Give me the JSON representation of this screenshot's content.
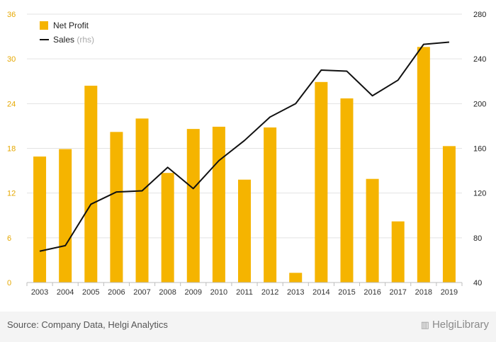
{
  "chart_data": {
    "type": "bar",
    "categories": [
      "2003",
      "2004",
      "2005",
      "2006",
      "2007",
      "2008",
      "2009",
      "2010",
      "2011",
      "2012",
      "2013",
      "2014",
      "2015",
      "2016",
      "2017",
      "2018",
      "2019"
    ],
    "series": [
      {
        "name": "Net Profit",
        "type": "bar",
        "axis": "left",
        "color": "#F5B400",
        "values": [
          16.9,
          17.9,
          26.4,
          20.2,
          22.0,
          14.7,
          20.6,
          20.9,
          13.8,
          20.8,
          1.3,
          26.9,
          24.7,
          13.9,
          8.2,
          31.6,
          18.3
        ]
      },
      {
        "name": "Sales",
        "type": "line",
        "axis": "right",
        "color": "#111111",
        "values": [
          68,
          73,
          110,
          121,
          122,
          143,
          124,
          149,
          167,
          188,
          200,
          230,
          229,
          207,
          221,
          253,
          255
        ]
      }
    ],
    "legend": [
      {
        "label": "Net Profit",
        "suffix": "",
        "marker": "box",
        "color": "#F5B400"
      },
      {
        "label": "Sales",
        "suffix": "(rhs)",
        "marker": "line",
        "color": "#111111"
      }
    ],
    "legend_position": "top-left",
    "y_left": {
      "min": 0,
      "max": 36,
      "ticks": [
        0,
        6,
        12,
        18,
        24,
        30,
        36
      ],
      "tick_color": "#E6A800"
    },
    "y_right": {
      "min": 40,
      "max": 280,
      "ticks": [
        40,
        80,
        120,
        160,
        200,
        240,
        280
      ],
      "tick_color": "#222222"
    },
    "grid": true,
    "title": "",
    "xlabel": "",
    "ylabel": ""
  },
  "footer": {
    "source": "Source: Company Data, Helgi Analytics",
    "brand": "HelgiLibrary",
    "brand_icon": "helgi-logo-icon"
  }
}
